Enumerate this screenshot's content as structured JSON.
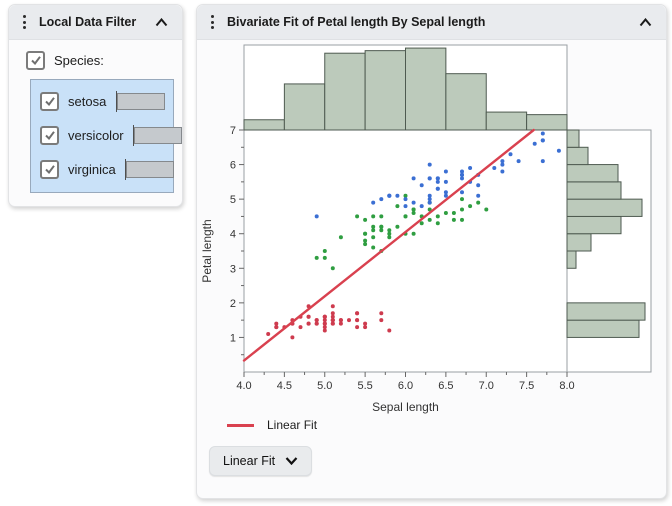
{
  "filter_panel": {
    "title": "Local Data Filter",
    "field": {
      "label": "Species:",
      "checked": true
    },
    "levels": [
      {
        "label": "setosa",
        "checked": true,
        "count": 50
      },
      {
        "label": "versicolor",
        "checked": true,
        "count": 50
      },
      {
        "label": "virginica",
        "checked": true,
        "count": 50
      }
    ]
  },
  "fit_panel": {
    "title": "Bivariate Fit of Petal length By Sepal length",
    "legend_label": "Linear Fit",
    "dropdown_button": "Linear Fit"
  },
  "chart_data": {
    "type": "scatter",
    "title": "Bivariate Fit of Petal length By Sepal length",
    "xlabel": "Sepal length",
    "ylabel": "Petal length",
    "xlim": [
      4.0,
      8.0
    ],
    "ylim": [
      0,
      7
    ],
    "x_ticks": [
      4.0,
      4.5,
      5.0,
      5.5,
      6.0,
      6.5,
      7.0,
      7.5,
      8.0
    ],
    "y_ticks": [
      1,
      2,
      3,
      4,
      5,
      6,
      7
    ],
    "grid": false,
    "frame_color": "#9A9FA3",
    "series": [
      {
        "name": "setosa",
        "color": "#CE3B4E",
        "points": [
          [
            5.1,
            1.4
          ],
          [
            4.9,
            1.4
          ],
          [
            4.7,
            1.3
          ],
          [
            4.6,
            1.5
          ],
          [
            5.0,
            1.4
          ],
          [
            5.4,
            1.7
          ],
          [
            4.6,
            1.4
          ],
          [
            5.0,
            1.5
          ],
          [
            4.4,
            1.4
          ],
          [
            4.9,
            1.5
          ],
          [
            5.4,
            1.5
          ],
          [
            4.8,
            1.6
          ],
          [
            4.8,
            1.4
          ],
          [
            4.3,
            1.1
          ],
          [
            5.8,
            1.2
          ],
          [
            5.7,
            1.5
          ],
          [
            5.4,
            1.3
          ],
          [
            5.1,
            1.4
          ],
          [
            5.7,
            1.7
          ],
          [
            5.1,
            1.5
          ],
          [
            5.4,
            1.7
          ],
          [
            5.1,
            1.5
          ],
          [
            4.6,
            1.0
          ],
          [
            5.1,
            1.7
          ],
          [
            4.8,
            1.9
          ],
          [
            5.0,
            1.6
          ],
          [
            5.0,
            1.6
          ],
          [
            5.2,
            1.5
          ],
          [
            5.2,
            1.4
          ],
          [
            4.7,
            1.6
          ],
          [
            4.8,
            1.6
          ],
          [
            5.4,
            1.5
          ],
          [
            5.2,
            1.5
          ],
          [
            5.5,
            1.4
          ],
          [
            4.9,
            1.5
          ],
          [
            5.0,
            1.2
          ],
          [
            5.5,
            1.3
          ],
          [
            4.9,
            1.4
          ],
          [
            4.4,
            1.3
          ],
          [
            5.1,
            1.5
          ],
          [
            5.0,
            1.3
          ],
          [
            4.5,
            1.3
          ],
          [
            4.4,
            1.3
          ],
          [
            5.0,
            1.6
          ],
          [
            5.1,
            1.9
          ],
          [
            4.8,
            1.4
          ],
          [
            5.1,
            1.6
          ],
          [
            4.6,
            1.4
          ],
          [
            5.3,
            1.5
          ],
          [
            5.0,
            1.4
          ]
        ]
      },
      {
        "name": "versicolor",
        "color": "#2F9E41",
        "points": [
          [
            7.0,
            4.7
          ],
          [
            6.4,
            4.5
          ],
          [
            6.9,
            4.9
          ],
          [
            5.5,
            4.0
          ],
          [
            6.5,
            4.6
          ],
          [
            5.7,
            4.5
          ],
          [
            6.3,
            4.7
          ],
          [
            4.9,
            3.3
          ],
          [
            6.6,
            4.6
          ],
          [
            5.2,
            3.9
          ],
          [
            5.0,
            3.5
          ],
          [
            5.9,
            4.2
          ],
          [
            6.0,
            4.0
          ],
          [
            6.1,
            4.7
          ],
          [
            5.6,
            3.6
          ],
          [
            6.7,
            4.4
          ],
          [
            5.6,
            4.5
          ],
          [
            5.8,
            4.1
          ],
          [
            6.2,
            4.5
          ],
          [
            5.6,
            3.9
          ],
          [
            5.9,
            4.8
          ],
          [
            6.1,
            4.0
          ],
          [
            6.3,
            4.9
          ],
          [
            6.1,
            4.7
          ],
          [
            6.4,
            4.3
          ],
          [
            6.6,
            4.4
          ],
          [
            6.8,
            4.8
          ],
          [
            6.7,
            5.0
          ],
          [
            6.0,
            4.5
          ],
          [
            5.7,
            3.5
          ],
          [
            5.5,
            3.8
          ],
          [
            5.5,
            3.7
          ],
          [
            5.8,
            3.9
          ],
          [
            6.0,
            5.1
          ],
          [
            5.4,
            4.5
          ],
          [
            6.0,
            4.5
          ],
          [
            6.7,
            4.7
          ],
          [
            6.3,
            4.4
          ],
          [
            5.6,
            4.1
          ],
          [
            5.5,
            4.0
          ],
          [
            5.5,
            4.4
          ],
          [
            6.1,
            4.6
          ],
          [
            5.8,
            4.0
          ],
          [
            5.0,
            3.3
          ],
          [
            5.6,
            4.2
          ],
          [
            5.7,
            4.2
          ],
          [
            5.7,
            4.2
          ],
          [
            6.2,
            4.3
          ],
          [
            5.1,
            3.0
          ],
          [
            5.7,
            4.1
          ]
        ]
      },
      {
        "name": "virginica",
        "color": "#3B6FD3",
        "points": [
          [
            6.3,
            6.0
          ],
          [
            5.8,
            5.1
          ],
          [
            7.1,
            5.9
          ],
          [
            6.3,
            5.6
          ],
          [
            6.5,
            5.8
          ],
          [
            7.6,
            6.6
          ],
          [
            4.9,
            4.5
          ],
          [
            7.3,
            6.3
          ],
          [
            6.7,
            5.8
          ],
          [
            7.2,
            6.1
          ],
          [
            6.5,
            5.1
          ],
          [
            6.4,
            5.3
          ],
          [
            6.8,
            5.5
          ],
          [
            5.7,
            5.0
          ],
          [
            5.8,
            5.1
          ],
          [
            6.4,
            5.3
          ],
          [
            6.5,
            5.5
          ],
          [
            7.7,
            6.7
          ],
          [
            7.7,
            6.9
          ],
          [
            6.0,
            5.0
          ],
          [
            6.9,
            5.7
          ],
          [
            5.6,
            4.9
          ],
          [
            7.7,
            6.7
          ],
          [
            6.3,
            4.9
          ],
          [
            6.7,
            5.7
          ],
          [
            7.2,
            6.0
          ],
          [
            6.2,
            4.8
          ],
          [
            6.1,
            4.9
          ],
          [
            6.4,
            5.6
          ],
          [
            7.2,
            5.8
          ],
          [
            7.4,
            6.1
          ],
          [
            7.9,
            6.4
          ],
          [
            6.4,
            5.6
          ],
          [
            6.3,
            5.1
          ],
          [
            6.1,
            5.6
          ],
          [
            7.7,
            6.1
          ],
          [
            6.3,
            5.6
          ],
          [
            6.4,
            5.5
          ],
          [
            6.0,
            4.8
          ],
          [
            6.9,
            5.4
          ],
          [
            6.7,
            5.6
          ],
          [
            6.9,
            5.1
          ],
          [
            5.8,
            5.1
          ],
          [
            6.8,
            5.9
          ],
          [
            6.7,
            5.7
          ],
          [
            6.7,
            5.2
          ],
          [
            6.3,
            5.0
          ],
          [
            6.5,
            5.2
          ],
          [
            6.2,
            5.4
          ],
          [
            5.9,
            5.1
          ]
        ]
      }
    ],
    "fit": {
      "name": "Linear Fit",
      "slope": 1.85843,
      "intercept": -7.10144,
      "color": "#D9414F"
    },
    "marginal_x_histogram": {
      "variable": "Sepal length",
      "bin_start": 4.0,
      "bin_width": 0.5,
      "counts": [
        4,
        18,
        30,
        31,
        32,
        22,
        7,
        6
      ],
      "fill": "#BCCABB",
      "stroke": "#4E5A50"
    },
    "marginal_y_histogram": {
      "variable": "Petal length",
      "bin_start": 1.0,
      "bin_width": 0.5,
      "counts": [
        24,
        26,
        0,
        0,
        3,
        8,
        18,
        25,
        18,
        17,
        7,
        4
      ],
      "fill": "#BCCABB",
      "stroke": "#4E5A50"
    }
  }
}
